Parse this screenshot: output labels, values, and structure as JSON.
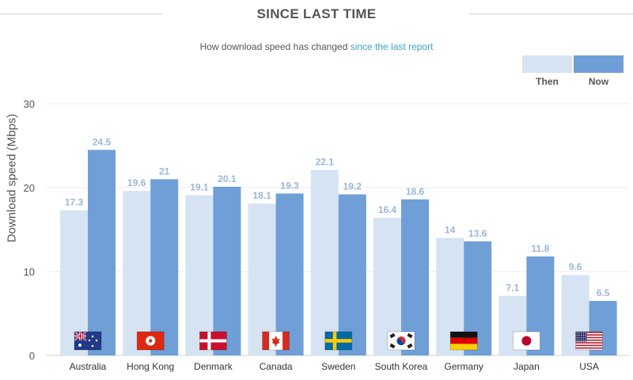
{
  "header": {
    "title": "SINCE LAST TIME",
    "subtitle_prefix": "How download speed has changed ",
    "subtitle_link": "since the last report"
  },
  "colors": {
    "then": "#d6e3f3",
    "now": "#6f9fd6",
    "value_label": "#9ab7d9",
    "link": "#3aa3c7"
  },
  "chart_data": {
    "type": "bar",
    "title": "SINCE LAST TIME",
    "subtitle": "How download speed has changed since the last report",
    "xlabel": "",
    "ylabel": "Download speed (Mbps)",
    "ylim": [
      0,
      30
    ],
    "yticks": [
      0,
      10,
      20,
      30
    ],
    "grid": true,
    "legend_position": "top-right",
    "categories": [
      "Australia",
      "Hong Kong",
      "Denmark",
      "Canada",
      "Sweden",
      "South Korea",
      "Germany",
      "Japan",
      "USA"
    ],
    "flags": [
      "australia-flag",
      "hong-kong-flag",
      "denmark-flag",
      "canada-flag",
      "sweden-flag",
      "south-korea-flag",
      "germany-flag",
      "japan-flag",
      "usa-flag"
    ],
    "series": [
      {
        "name": "Then",
        "values": [
          17.3,
          19.6,
          19.1,
          18.1,
          22.1,
          16.4,
          14,
          7.1,
          9.6
        ]
      },
      {
        "name": "Now",
        "values": [
          24.5,
          21,
          20.1,
          19.3,
          19.2,
          18.6,
          13.6,
          11.8,
          6.5
        ]
      }
    ]
  }
}
